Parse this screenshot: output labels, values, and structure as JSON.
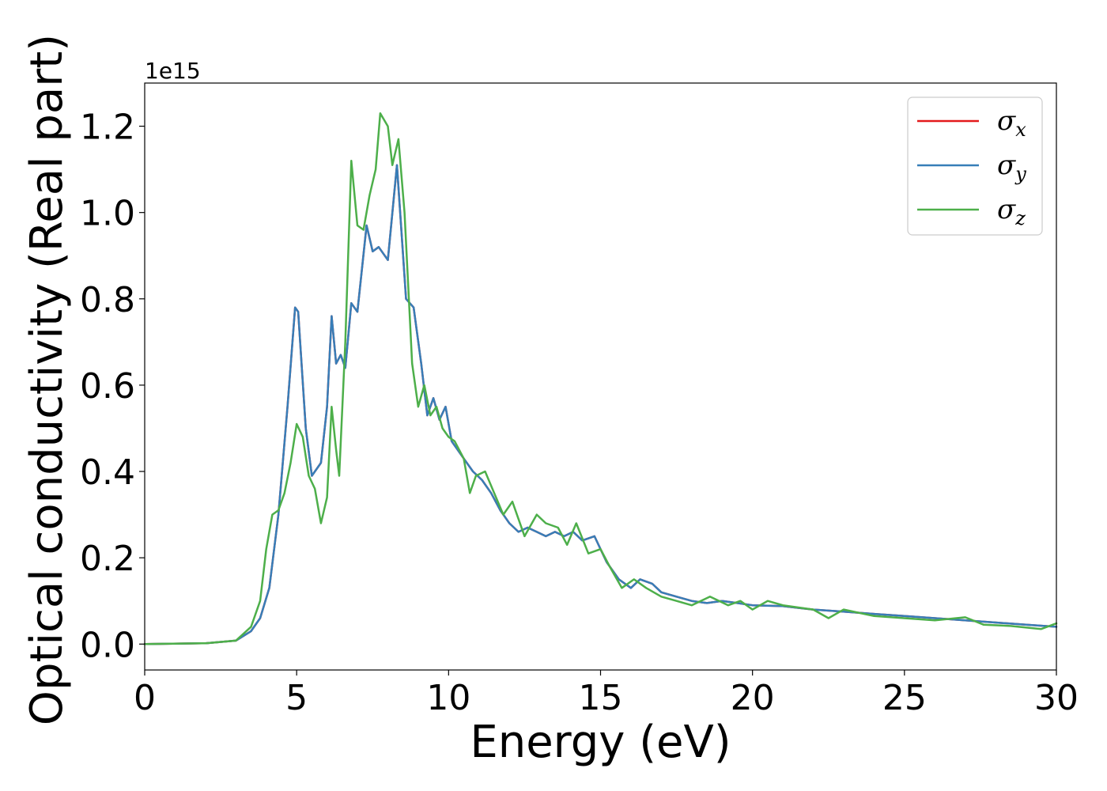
{
  "chart_data": {
    "type": "line",
    "xlabel": "Energy (eV)",
    "ylabel": "Optical conductivity (Real part)",
    "y_offset_text": "1e15",
    "xlim": [
      0,
      30
    ],
    "ylim": [
      -0.06,
      1.3
    ],
    "x_ticks": [
      0,
      5,
      10,
      15,
      20,
      25,
      30
    ],
    "x_tick_labels": [
      "0",
      "5",
      "10",
      "15",
      "20",
      "25",
      "30"
    ],
    "y_ticks": [
      0.0,
      0.2,
      0.4,
      0.6,
      0.8,
      1.0,
      1.2
    ],
    "y_tick_labels": [
      "0.0",
      "0.2",
      "0.4",
      "0.6",
      "0.8",
      "1.0",
      "1.2"
    ],
    "grid": false,
    "legend_position": "top-right",
    "series": [
      {
        "name": "σ",
        "subscript": "x",
        "color": "#e41a1c",
        "points": [
          [
            0,
            0
          ],
          [
            2,
            0.002
          ],
          [
            3,
            0.008
          ],
          [
            3.5,
            0.03
          ],
          [
            3.8,
            0.06
          ],
          [
            4.1,
            0.13
          ],
          [
            4.4,
            0.3
          ],
          [
            4.7,
            0.55
          ],
          [
            4.95,
            0.78
          ],
          [
            5.05,
            0.77
          ],
          [
            5.3,
            0.5
          ],
          [
            5.5,
            0.39
          ],
          [
            5.8,
            0.42
          ],
          [
            6.0,
            0.55
          ],
          [
            6.15,
            0.76
          ],
          [
            6.3,
            0.65
          ],
          [
            6.45,
            0.67
          ],
          [
            6.6,
            0.64
          ],
          [
            6.8,
            0.79
          ],
          [
            7.0,
            0.77
          ],
          [
            7.3,
            0.97
          ],
          [
            7.5,
            0.91
          ],
          [
            7.7,
            0.92
          ],
          [
            8.0,
            0.89
          ],
          [
            8.3,
            1.11
          ],
          [
            8.6,
            0.8
          ],
          [
            8.85,
            0.78
          ],
          [
            9.1,
            0.65
          ],
          [
            9.3,
            0.53
          ],
          [
            9.5,
            0.57
          ],
          [
            9.7,
            0.52
          ],
          [
            9.9,
            0.55
          ],
          [
            10.1,
            0.47
          ],
          [
            10.5,
            0.43
          ],
          [
            10.8,
            0.4
          ],
          [
            11.1,
            0.38
          ],
          [
            11.4,
            0.35
          ],
          [
            11.7,
            0.31
          ],
          [
            12.0,
            0.28
          ],
          [
            12.3,
            0.26
          ],
          [
            12.6,
            0.27
          ],
          [
            12.9,
            0.26
          ],
          [
            13.2,
            0.25
          ],
          [
            13.5,
            0.26
          ],
          [
            13.8,
            0.25
          ],
          [
            14.1,
            0.26
          ],
          [
            14.4,
            0.24
          ],
          [
            14.8,
            0.25
          ],
          [
            15.2,
            0.19
          ],
          [
            15.6,
            0.15
          ],
          [
            16.0,
            0.13
          ],
          [
            16.3,
            0.15
          ],
          [
            16.7,
            0.14
          ],
          [
            17.0,
            0.12
          ],
          [
            17.5,
            0.11
          ],
          [
            18,
            0.1
          ],
          [
            18.5,
            0.095
          ],
          [
            19,
            0.1
          ],
          [
            19.5,
            0.095
          ],
          [
            20,
            0.09
          ],
          [
            21,
            0.088
          ],
          [
            22,
            0.08
          ],
          [
            23,
            0.075
          ],
          [
            24,
            0.07
          ],
          [
            25,
            0.065
          ],
          [
            26,
            0.06
          ],
          [
            27,
            0.055
          ],
          [
            28,
            0.05
          ],
          [
            29,
            0.045
          ],
          [
            30,
            0.04
          ]
        ]
      },
      {
        "name": "σ",
        "subscript": "y",
        "color": "#377eb8",
        "points": [
          [
            0,
            0
          ],
          [
            2,
            0.002
          ],
          [
            3,
            0.008
          ],
          [
            3.5,
            0.03
          ],
          [
            3.8,
            0.06
          ],
          [
            4.1,
            0.13
          ],
          [
            4.4,
            0.3
          ],
          [
            4.7,
            0.55
          ],
          [
            4.95,
            0.78
          ],
          [
            5.05,
            0.77
          ],
          [
            5.3,
            0.5
          ],
          [
            5.5,
            0.39
          ],
          [
            5.8,
            0.42
          ],
          [
            6.0,
            0.55
          ],
          [
            6.15,
            0.76
          ],
          [
            6.3,
            0.65
          ],
          [
            6.45,
            0.67
          ],
          [
            6.6,
            0.64
          ],
          [
            6.8,
            0.79
          ],
          [
            7.0,
            0.77
          ],
          [
            7.3,
            0.97
          ],
          [
            7.5,
            0.91
          ],
          [
            7.7,
            0.92
          ],
          [
            8.0,
            0.89
          ],
          [
            8.3,
            1.11
          ],
          [
            8.6,
            0.8
          ],
          [
            8.85,
            0.78
          ],
          [
            9.1,
            0.65
          ],
          [
            9.3,
            0.53
          ],
          [
            9.5,
            0.57
          ],
          [
            9.7,
            0.52
          ],
          [
            9.9,
            0.55
          ],
          [
            10.1,
            0.47
          ],
          [
            10.5,
            0.43
          ],
          [
            10.8,
            0.4
          ],
          [
            11.1,
            0.38
          ],
          [
            11.4,
            0.35
          ],
          [
            11.7,
            0.31
          ],
          [
            12.0,
            0.28
          ],
          [
            12.3,
            0.26
          ],
          [
            12.6,
            0.27
          ],
          [
            12.9,
            0.26
          ],
          [
            13.2,
            0.25
          ],
          [
            13.5,
            0.26
          ],
          [
            13.8,
            0.25
          ],
          [
            14.1,
            0.26
          ],
          [
            14.4,
            0.24
          ],
          [
            14.8,
            0.25
          ],
          [
            15.2,
            0.19
          ],
          [
            15.6,
            0.15
          ],
          [
            16.0,
            0.13
          ],
          [
            16.3,
            0.15
          ],
          [
            16.7,
            0.14
          ],
          [
            17.0,
            0.12
          ],
          [
            17.5,
            0.11
          ],
          [
            18,
            0.1
          ],
          [
            18.5,
            0.095
          ],
          [
            19,
            0.1
          ],
          [
            19.5,
            0.095
          ],
          [
            20,
            0.09
          ],
          [
            21,
            0.088
          ],
          [
            22,
            0.08
          ],
          [
            23,
            0.075
          ],
          [
            24,
            0.07
          ],
          [
            25,
            0.065
          ],
          [
            26,
            0.06
          ],
          [
            27,
            0.055
          ],
          [
            28,
            0.05
          ],
          [
            29,
            0.045
          ],
          [
            30,
            0.04
          ]
        ]
      },
      {
        "name": "σ",
        "subscript": "z",
        "color": "#4daf4a",
        "points": [
          [
            0,
            0
          ],
          [
            2,
            0.002
          ],
          [
            3,
            0.008
          ],
          [
            3.5,
            0.04
          ],
          [
            3.8,
            0.1
          ],
          [
            4.0,
            0.22
          ],
          [
            4.2,
            0.3
          ],
          [
            4.4,
            0.31
          ],
          [
            4.6,
            0.35
          ],
          [
            4.8,
            0.42
          ],
          [
            5.0,
            0.51
          ],
          [
            5.2,
            0.48
          ],
          [
            5.4,
            0.39
          ],
          [
            5.6,
            0.36
          ],
          [
            5.8,
            0.28
          ],
          [
            6.0,
            0.34
          ],
          [
            6.15,
            0.55
          ],
          [
            6.3,
            0.45
          ],
          [
            6.4,
            0.39
          ],
          [
            6.6,
            0.7
          ],
          [
            6.8,
            1.12
          ],
          [
            7.0,
            0.97
          ],
          [
            7.2,
            0.96
          ],
          [
            7.4,
            1.04
          ],
          [
            7.6,
            1.1
          ],
          [
            7.75,
            1.23
          ],
          [
            8.0,
            1.2
          ],
          [
            8.15,
            1.11
          ],
          [
            8.35,
            1.17
          ],
          [
            8.55,
            1.0
          ],
          [
            8.8,
            0.65
          ],
          [
            9.0,
            0.55
          ],
          [
            9.2,
            0.6
          ],
          [
            9.4,
            0.53
          ],
          [
            9.6,
            0.55
          ],
          [
            9.8,
            0.5
          ],
          [
            10.0,
            0.48
          ],
          [
            10.2,
            0.47
          ],
          [
            10.5,
            0.43
          ],
          [
            10.7,
            0.35
          ],
          [
            10.9,
            0.39
          ],
          [
            11.2,
            0.4
          ],
          [
            11.5,
            0.35
          ],
          [
            11.8,
            0.3
          ],
          [
            12.1,
            0.33
          ],
          [
            12.5,
            0.25
          ],
          [
            12.9,
            0.3
          ],
          [
            13.2,
            0.28
          ],
          [
            13.6,
            0.27
          ],
          [
            13.9,
            0.23
          ],
          [
            14.2,
            0.28
          ],
          [
            14.6,
            0.21
          ],
          [
            15.0,
            0.22
          ],
          [
            15.3,
            0.18
          ],
          [
            15.7,
            0.13
          ],
          [
            16.1,
            0.15
          ],
          [
            16.5,
            0.13
          ],
          [
            17.0,
            0.11
          ],
          [
            17.5,
            0.1
          ],
          [
            18,
            0.09
          ],
          [
            18.6,
            0.11
          ],
          [
            19.2,
            0.09
          ],
          [
            19.6,
            0.1
          ],
          [
            20,
            0.08
          ],
          [
            20.5,
            0.1
          ],
          [
            21,
            0.09
          ],
          [
            22,
            0.08
          ],
          [
            22.5,
            0.06
          ],
          [
            23,
            0.08
          ],
          [
            24,
            0.065
          ],
          [
            25,
            0.06
          ],
          [
            26,
            0.055
          ],
          [
            27,
            0.062
          ],
          [
            27.6,
            0.045
          ],
          [
            28.5,
            0.042
          ],
          [
            29.5,
            0.035
          ],
          [
            30,
            0.048
          ]
        ]
      }
    ]
  }
}
